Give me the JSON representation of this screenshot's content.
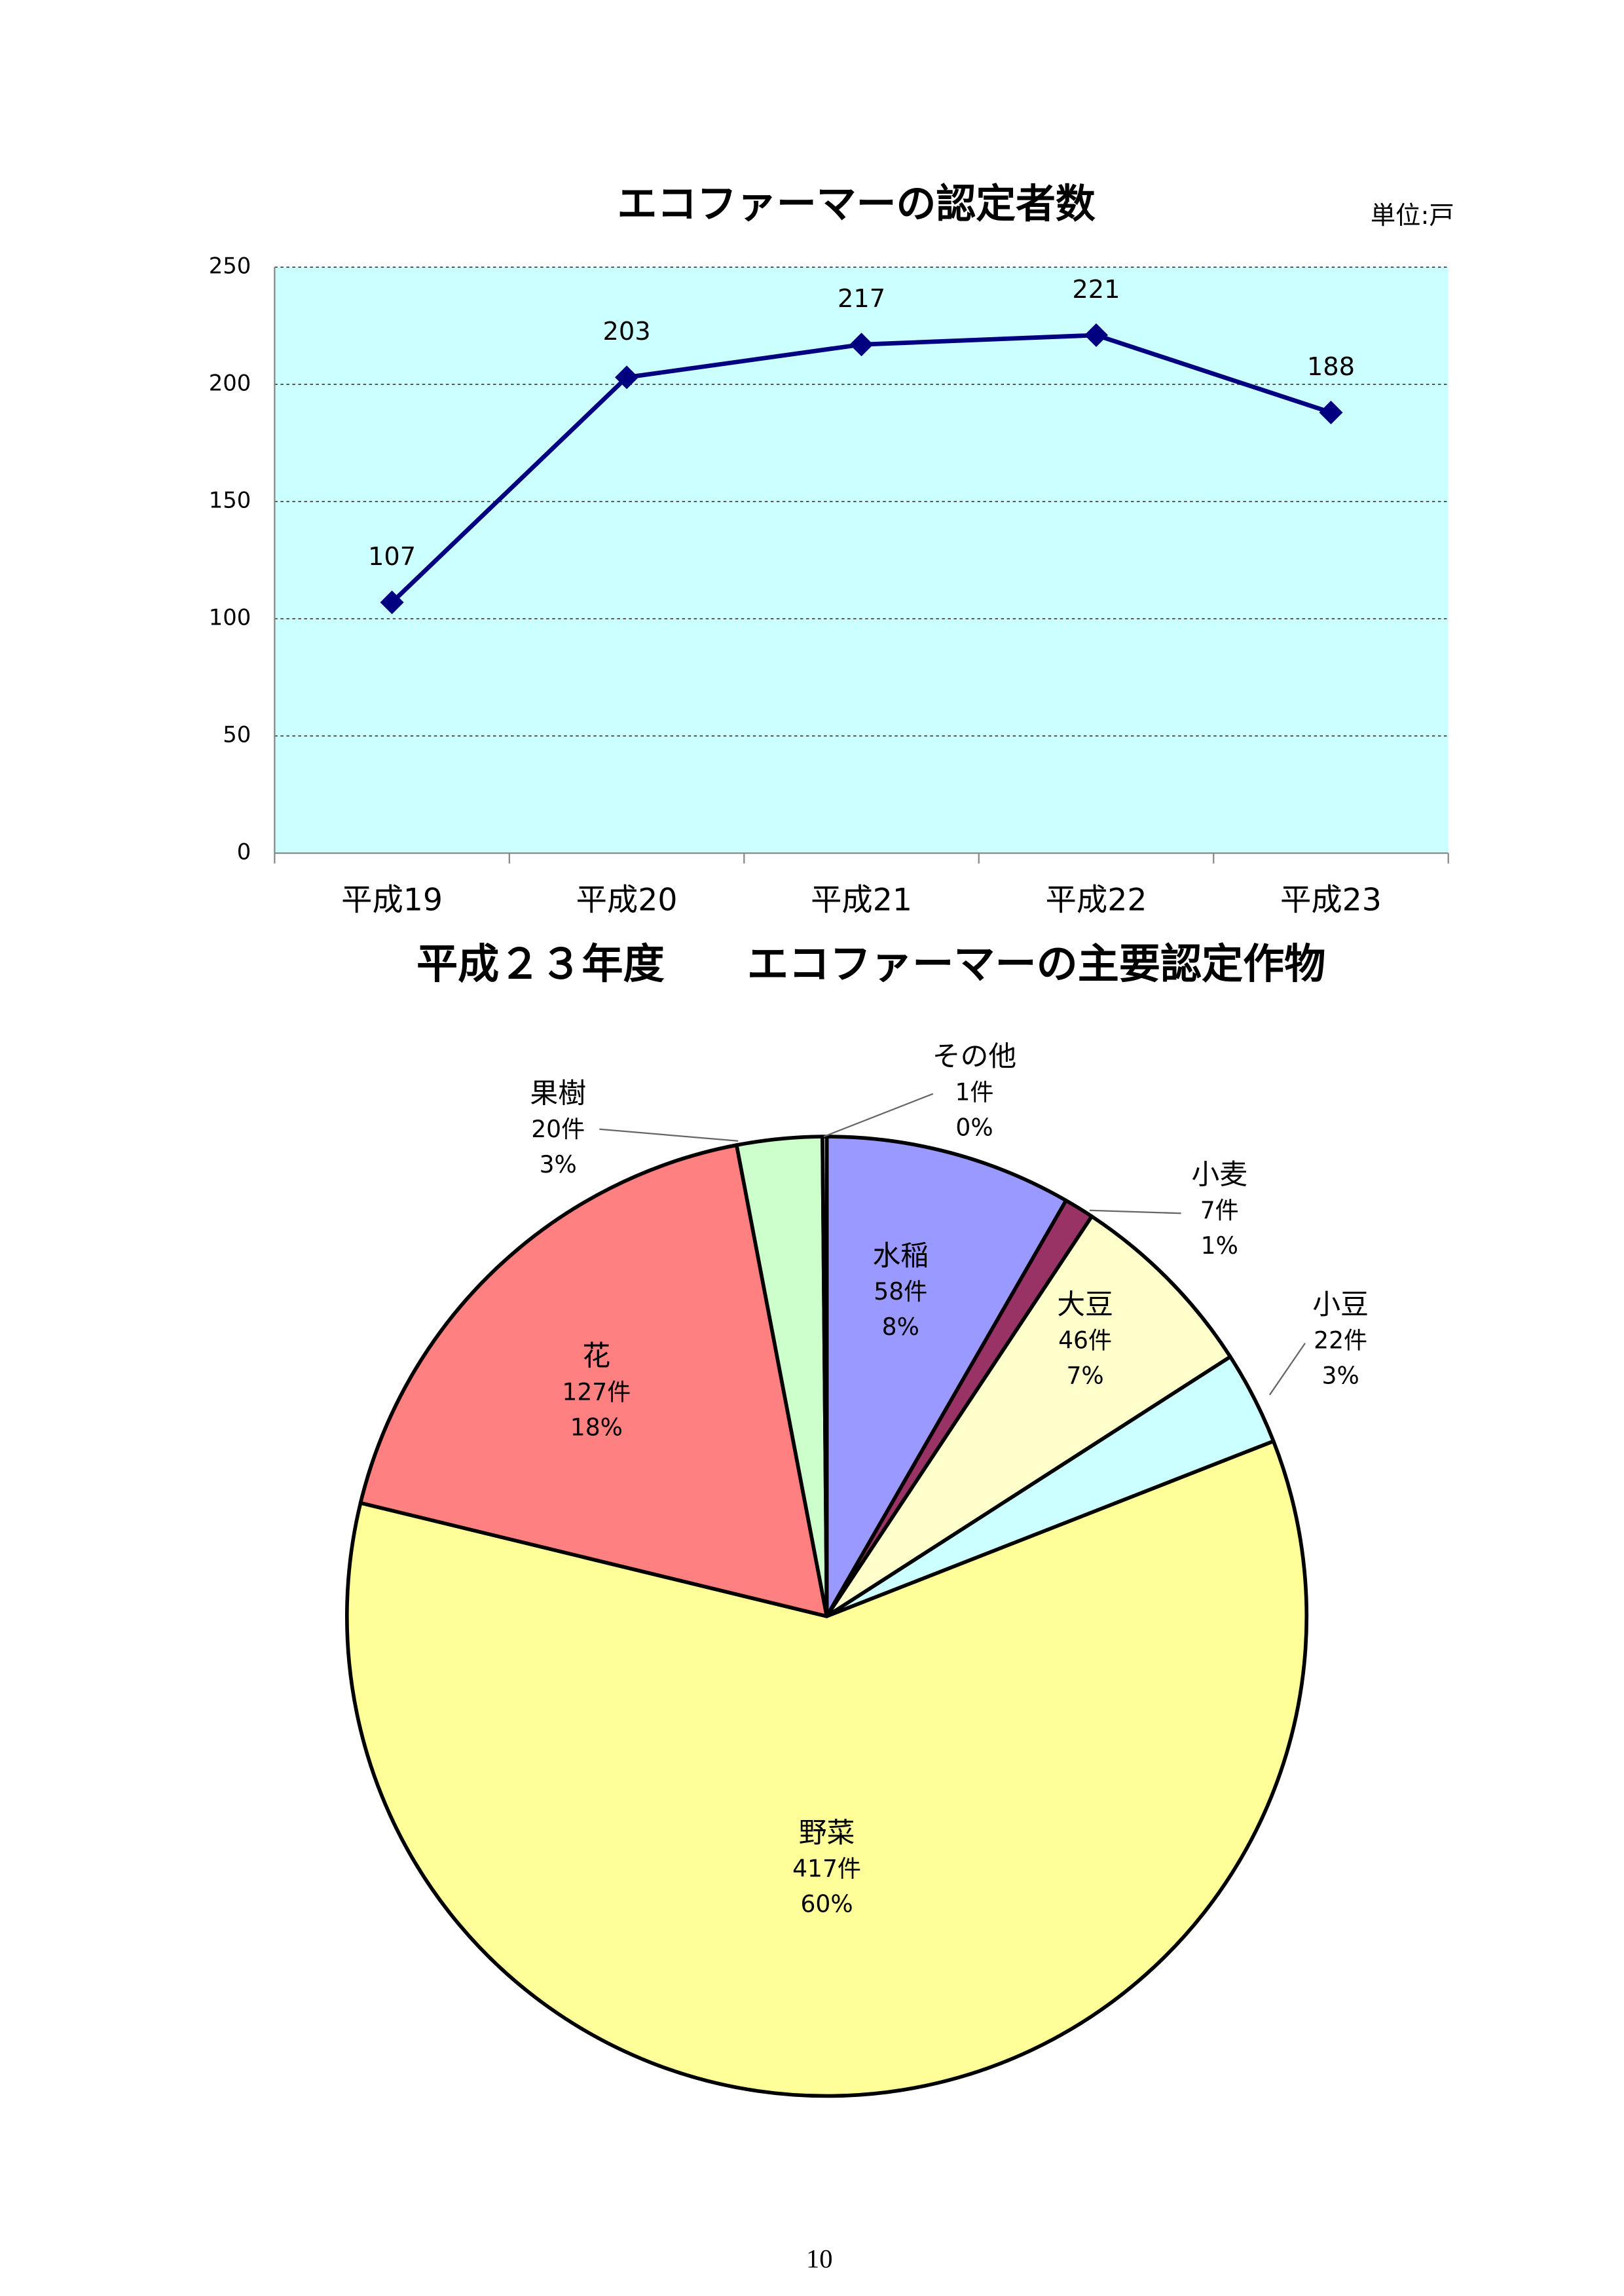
{
  "chart_data": [
    {
      "type": "line",
      "title": "エコファーマーの認定者数",
      "unit": "単位:戸",
      "categories": [
        "平成19",
        "平成20",
        "平成21",
        "平成22",
        "平成23"
      ],
      "values": [
        107,
        203,
        217,
        221,
        188
      ],
      "color": "#000080",
      "background": "#ccffff",
      "ylim": [
        0,
        250
      ],
      "yticks": [
        0,
        50,
        100,
        150,
        200,
        250
      ],
      "grid": true
    },
    {
      "type": "pie",
      "title": "平成２３年度　　エコファーマーの主要認定作物",
      "categories": [
        "水稲",
        "小麦",
        "大豆",
        "小豆",
        "野菜",
        "花",
        "果樹",
        "その他"
      ],
      "values": [
        58,
        7,
        46,
        22,
        417,
        127,
        20,
        1
      ],
      "value_labels": [
        "58件",
        "7件",
        "46件",
        "22件",
        "417件",
        "127件",
        "20件",
        "1件"
      ],
      "percent_labels": [
        "8%",
        "1%",
        "7%",
        "3%",
        "60%",
        "18%",
        "3%",
        "0%"
      ],
      "colors": [
        "#9999ff",
        "#993366",
        "#ffffcc",
        "#ccffff",
        "#ffff99",
        "#ff8080",
        "#ccffcc",
        "#ffffff"
      ]
    }
  ],
  "page_number": "10"
}
